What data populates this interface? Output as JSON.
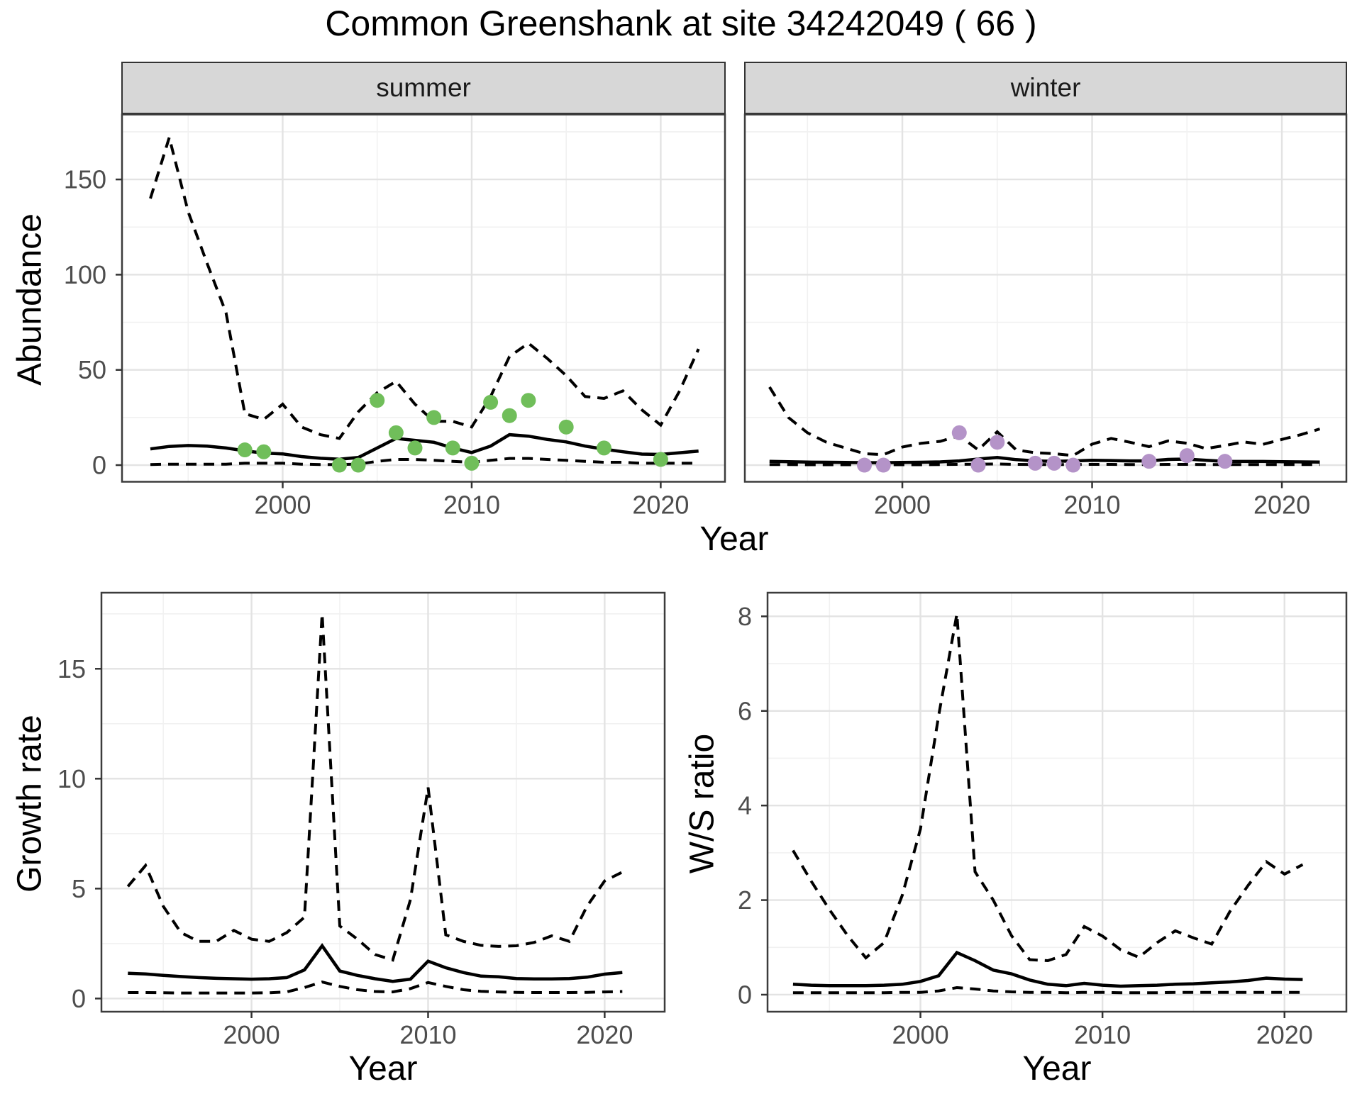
{
  "title": "Common Greenshank at site 34242049 ( 66 )",
  "axis_labels": {
    "abundance": "Abundance",
    "year_top": "Year",
    "year_bottom_left": "Year",
    "year_bottom_right": "Year",
    "growth_rate": "Growth rate",
    "ws_ratio": "W/S ratio"
  },
  "facets": {
    "summer": "summer",
    "winter": "winter"
  },
  "colors": {
    "summer_point": "#70BE5A",
    "winter_point": "#B493C8",
    "line": "#000000",
    "grid_major": "#E3E3E3",
    "grid_minor": "#F1F1F1",
    "panel_border": "#3C3C3C",
    "strip_bg": "#D7D7D7",
    "tick_text": "#4D4D4D"
  },
  "chart_data": [
    {
      "name": "abundance-summer",
      "type": "line",
      "facet": "summer",
      "title": "Common Greenshank at site 34242049 ( 66 )",
      "xlabel": "Year",
      "ylabel": "Abundance",
      "box": {
        "l": 172,
        "t": 161.5,
        "r": 1022,
        "b": 679.5
      },
      "xdomain": [
        1991.5,
        2023.4
      ],
      "ydomain": [
        -8.73,
        184.1
      ],
      "xticks": [
        2000,
        2010,
        2020
      ],
      "xminor": [
        1995,
        2005,
        2015
      ],
      "yticks": [
        0,
        50,
        100,
        150
      ],
      "yminor": [
        25,
        75,
        125,
        175
      ],
      "show_ylabels": true,
      "grid": true,
      "legend": "none",
      "years": [
        1993,
        1994,
        1995,
        1996,
        1997,
        1998,
        1999,
        2000,
        2001,
        2002,
        2003,
        2004,
        2005,
        2006,
        2007,
        2008,
        2009,
        2010,
        2011,
        2012,
        2013,
        2014,
        2015,
        2016,
        2017,
        2018,
        2019,
        2020,
        2021,
        2022
      ],
      "series": [
        {
          "name": "median",
          "style": "solid",
          "values": [
            8.5,
            9.8,
            10.3,
            10,
            9,
            7.5,
            6.3,
            5.9,
            4.5,
            3.6,
            3.1,
            4,
            9,
            14,
            13,
            12,
            9,
            6.6,
            10,
            16,
            15.2,
            13.5,
            12.2,
            10,
            8.4,
            7,
            5.8,
            5.6,
            6.5,
            7.4
          ]
        },
        {
          "name": "lower95",
          "style": "dashed",
          "values": [
            0.3,
            0.5,
            0.5,
            0.5,
            0.5,
            1,
            1,
            1,
            0.5,
            0.3,
            0.3,
            0.5,
            2,
            3,
            3,
            2.5,
            2,
            1.5,
            2.5,
            3.5,
            3.5,
            3,
            2.5,
            2,
            1.5,
            1.5,
            1,
            1,
            1,
            1
          ]
        },
        {
          "name": "upper95",
          "style": "dashed",
          "values": [
            140,
            172,
            133,
            106,
            80,
            27,
            24,
            32,
            20,
            16,
            14,
            28,
            38,
            44,
            32,
            23,
            23,
            20,
            36,
            57,
            64,
            56,
            47,
            36,
            35,
            39,
            29,
            21,
            39,
            61
          ]
        }
      ],
      "points": {
        "color": "#70BE5A",
        "data": [
          [
            1998,
            8
          ],
          [
            1999,
            7
          ],
          [
            2003,
            0
          ],
          [
            2004,
            0
          ],
          [
            2005,
            34
          ],
          [
            2006,
            17
          ],
          [
            2007,
            9
          ],
          [
            2008,
            25
          ],
          [
            2009,
            9
          ],
          [
            2010,
            1
          ],
          [
            2011,
            33
          ],
          [
            2012,
            26
          ],
          [
            2013,
            34
          ],
          [
            2015,
            20
          ],
          [
            2017,
            9
          ],
          [
            2020,
            3
          ]
        ]
      }
    },
    {
      "name": "abundance-winter",
      "type": "line",
      "facet": "winter",
      "xlabel": "Year",
      "ylabel": "Abundance",
      "box": {
        "l": 1050,
        "t": 161.5,
        "r": 1898,
        "b": 679.5
      },
      "xdomain": [
        1991.7,
        2023.4
      ],
      "ydomain": [
        -8.73,
        184.1
      ],
      "xticks": [
        2000,
        2010,
        2020
      ],
      "xminor": [
        1995,
        2005,
        2015
      ],
      "yticks": [
        0,
        50,
        100,
        150
      ],
      "yminor": [
        25,
        75,
        125,
        175
      ],
      "show_ylabels": false,
      "grid": true,
      "legend": "none",
      "years": [
        1993,
        1994,
        1995,
        1996,
        1997,
        1998,
        1999,
        2000,
        2001,
        2002,
        2003,
        2004,
        2005,
        2006,
        2007,
        2008,
        2009,
        2010,
        2011,
        2012,
        2013,
        2014,
        2015,
        2016,
        2017,
        2018,
        2019,
        2020,
        2021,
        2022
      ],
      "series": [
        {
          "name": "median",
          "style": "solid",
          "values": [
            2,
            1.8,
            1.6,
            1.5,
            1.4,
            1.3,
            1.3,
            1.4,
            1.5,
            1.7,
            2.2,
            3.2,
            4,
            2.9,
            2.2,
            2,
            2.2,
            2.5,
            2.4,
            2.2,
            2.2,
            3,
            3.2,
            2.5,
            2,
            1.9,
            1.9,
            1.8,
            1.7,
            1.6
          ]
        },
        {
          "name": "lower95",
          "style": "dashed",
          "values": [
            0.3,
            0.3,
            0.2,
            0.2,
            0.2,
            0.2,
            0.2,
            0.2,
            0.2,
            0.3,
            0.4,
            0.5,
            0.6,
            0.4,
            0.3,
            0.3,
            0.3,
            0.4,
            0.4,
            0.3,
            0.3,
            0.4,
            0.4,
            0.3,
            0.3,
            0.3,
            0.3,
            0.3,
            0.3,
            0.3
          ]
        },
        {
          "name": "upper95",
          "style": "dashed",
          "values": [
            41,
            25,
            17,
            12,
            9,
            6,
            5.5,
            9.5,
            11.5,
            12.5,
            15.5,
            8,
            17.5,
            8,
            6.5,
            6,
            5,
            11,
            14,
            12,
            9.7,
            12.7,
            11.5,
            8.7,
            10.3,
            12.2,
            10.9,
            13.5,
            16,
            19
          ]
        }
      ],
      "points": {
        "color": "#B493C8",
        "data": [
          [
            1998,
            0
          ],
          [
            1999,
            0
          ],
          [
            2003,
            17
          ],
          [
            2004,
            0
          ],
          [
            2005,
            12
          ],
          [
            2007,
            1
          ],
          [
            2008,
            1
          ],
          [
            2009,
            0
          ],
          [
            2013,
            2
          ],
          [
            2015,
            5
          ],
          [
            2017,
            2
          ]
        ]
      }
    },
    {
      "name": "growth-rate",
      "type": "line",
      "facet": null,
      "xlabel": "Year",
      "ylabel": "Growth rate",
      "box": {
        "l": 143,
        "t": 836,
        "r": 937,
        "b": 1427
      },
      "xdomain": [
        1991.5,
        2023.4
      ],
      "ydomain": [
        -0.6,
        18.46
      ],
      "xticks": [
        2000,
        2010,
        2020
      ],
      "xminor": [
        1995,
        2005,
        2015
      ],
      "yticks": [
        0,
        5,
        10,
        15
      ],
      "yminor": [
        2.5,
        7.5,
        12.5,
        17.5
      ],
      "show_ylabels": true,
      "grid": true,
      "legend": "none",
      "years": [
        1993,
        1994,
        1995,
        1996,
        1997,
        1998,
        1999,
        2000,
        2001,
        2002,
        2003,
        2004,
        2005,
        2006,
        2007,
        2008,
        2009,
        2010,
        2011,
        2012,
        2013,
        2014,
        2015,
        2016,
        2017,
        2018,
        2019,
        2020,
        2021
      ],
      "series": [
        {
          "name": "median",
          "style": "solid",
          "values": [
            1.15,
            1.12,
            1.05,
            1,
            0.95,
            0.92,
            0.9,
            0.88,
            0.9,
            0.95,
            1.3,
            2.4,
            1.25,
            1.05,
            0.9,
            0.78,
            0.88,
            1.7,
            1.4,
            1.18,
            1.02,
            0.99,
            0.91,
            0.89,
            0.89,
            0.91,
            0.97,
            1.11,
            1.18
          ]
        },
        {
          "name": "lower95",
          "style": "dashed",
          "values": [
            0.27,
            0.27,
            0.26,
            0.25,
            0.25,
            0.25,
            0.25,
            0.25,
            0.26,
            0.3,
            0.5,
            0.75,
            0.55,
            0.4,
            0.32,
            0.3,
            0.45,
            0.73,
            0.55,
            0.4,
            0.33,
            0.3,
            0.28,
            0.27,
            0.27,
            0.27,
            0.28,
            0.3,
            0.32
          ]
        },
        {
          "name": "upper95",
          "style": "dashed",
          "values": [
            5.1,
            6.05,
            4.2,
            3,
            2.6,
            2.6,
            3.1,
            2.7,
            2.6,
            3,
            3.7,
            17.5,
            3.3,
            2.7,
            2,
            1.75,
            4.5,
            9.6,
            2.9,
            2.6,
            2.42,
            2.37,
            2.4,
            2.55,
            2.85,
            2.6,
            4.2,
            5.35,
            5.75
          ]
        }
      ],
      "points": null
    },
    {
      "name": "ws-ratio",
      "type": "line",
      "facet": null,
      "xlabel": "Year",
      "ylabel": "W/S ratio",
      "box": {
        "l": 1082,
        "t": 836,
        "r": 1898,
        "b": 1427
      },
      "xdomain": [
        1991.6,
        2023.4
      ],
      "ydomain": [
        -0.36,
        8.5
      ],
      "xticks": [
        2000,
        2010,
        2020
      ],
      "xminor": [
        1995,
        2005,
        2015
      ],
      "yticks": [
        0,
        2,
        4,
        6,
        8
      ],
      "yminor": [
        1,
        3,
        5,
        7
      ],
      "show_ylabels": true,
      "grid": true,
      "legend": "none",
      "years": [
        1993,
        1994,
        1995,
        1996,
        1997,
        1998,
        1999,
        2000,
        2001,
        2002,
        2003,
        2004,
        2005,
        2006,
        2007,
        2008,
        2009,
        2010,
        2011,
        2012,
        2013,
        2014,
        2015,
        2016,
        2017,
        2018,
        2019,
        2020,
        2021
      ],
      "series": [
        {
          "name": "median",
          "style": "solid",
          "values": [
            0.22,
            0.2,
            0.19,
            0.19,
            0.19,
            0.2,
            0.22,
            0.28,
            0.4,
            0.89,
            0.72,
            0.52,
            0.44,
            0.31,
            0.22,
            0.19,
            0.24,
            0.2,
            0.18,
            0.19,
            0.2,
            0.22,
            0.23,
            0.25,
            0.27,
            0.3,
            0.35,
            0.33,
            0.32
          ]
        },
        {
          "name": "lower95",
          "style": "dashed",
          "values": [
            0.04,
            0.04,
            0.04,
            0.04,
            0.04,
            0.04,
            0.05,
            0.05,
            0.08,
            0.15,
            0.12,
            0.08,
            0.06,
            0.05,
            0.05,
            0.04,
            0.05,
            0.05,
            0.04,
            0.04,
            0.04,
            0.05,
            0.05,
            0.05,
            0.05,
            0.05,
            0.05,
            0.05,
            0.05
          ]
        },
        {
          "name": "upper95",
          "style": "dashed",
          "values": [
            3.05,
            2.4,
            1.8,
            1.25,
            0.78,
            1.1,
            2.1,
            3.5,
            5.9,
            8.05,
            2.6,
            2,
            1.25,
            0.74,
            0.72,
            0.85,
            1.44,
            1.24,
            0.95,
            0.79,
            1.1,
            1.35,
            1.2,
            1.07,
            1.76,
            2.31,
            2.81,
            2.55,
            2.75
          ]
        }
      ],
      "points": null
    }
  ]
}
